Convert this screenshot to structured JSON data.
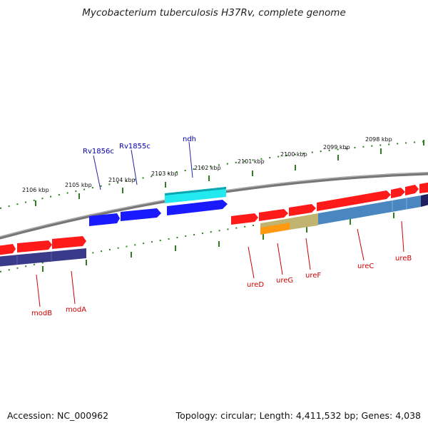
{
  "title": "Mycobacterium tuberculosis H37Rv, complete genome",
  "footer": {
    "accession": "Accession: NC_000962",
    "summary": "Topology: circular; Length: 4,411,532 bp; Genes: 4,038"
  },
  "colors": {
    "backbone": "#888888",
    "tick": "#2e7d1e",
    "forward_gene": "#ff1a1a",
    "reverse_gene": "#1a1aff",
    "ndh_gene": "#22e8f0",
    "forward_operon_band": "#3a3a8a",
    "urease_operon_band": "#4a86c0",
    "ureG_band": "#ff9a10",
    "ureF_band": "#c0b470",
    "forward_label": "#cc0000",
    "reverse_label": "#0000aa"
  },
  "scale": {
    "unit": "kbp",
    "tick_labels": [
      "2106 kbp",
      "2105 kbp",
      "2104 kbp",
      "2103 kbp",
      "2102 kbp",
      "2101 kbp",
      "2100 kbp",
      "2099 kbp",
      "2098 kbp"
    ]
  },
  "gene_labels": {
    "top": [
      "Rv1856c",
      "Rv1855c",
      "ndh"
    ],
    "bottom": [
      "modB",
      "modA",
      "ureD",
      "ureG",
      "ureF",
      "ureC",
      "ureB"
    ]
  },
  "icons": [
    "circular-genome-map"
  ]
}
